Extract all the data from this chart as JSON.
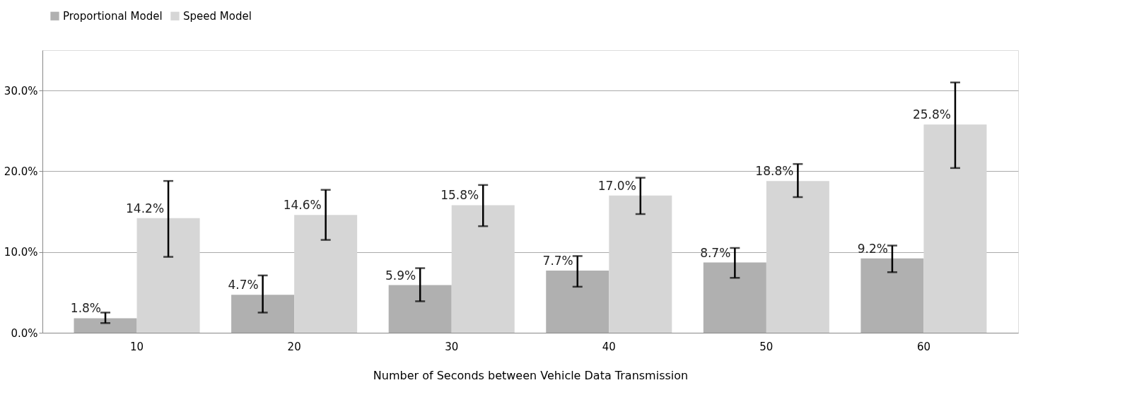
{
  "chart_data": {
    "type": "bar",
    "xlabel": "Number of Seconds between Vehicle Data Transmission",
    "categories": [
      "10",
      "20",
      "30",
      "40",
      "50",
      "60"
    ],
    "series": [
      {
        "name": "Proportional Model",
        "color": "#b0b0b0",
        "values": [
          1.8,
          4.7,
          5.9,
          7.7,
          8.7,
          9.2
        ],
        "value_labels": [
          "1.8%",
          "4.7%",
          "5.9%",
          "7.7%",
          "8.7%",
          "9.2%"
        ],
        "errors": [
          [
            1.2,
            2.5
          ],
          [
            2.5,
            7.1
          ],
          [
            3.9,
            8.0
          ],
          [
            5.7,
            9.5
          ],
          [
            6.8,
            10.5
          ],
          [
            7.5,
            10.8
          ]
        ]
      },
      {
        "name": "Speed Model",
        "color": "#d6d6d6",
        "values": [
          14.2,
          14.6,
          15.8,
          17.0,
          18.8,
          25.8
        ],
        "value_labels": [
          "14.2%",
          "14.6%",
          "15.8%",
          "17.0%",
          "18.8%",
          "25.8%"
        ],
        "errors": [
          [
            9.4,
            18.8
          ],
          [
            11.5,
            17.7
          ],
          [
            13.2,
            18.3
          ],
          [
            14.7,
            19.2
          ],
          [
            16.8,
            20.9
          ],
          [
            20.4,
            31.0
          ]
        ]
      }
    ],
    "ylim": [
      0,
      35
    ],
    "yticks": [
      {
        "value": 0,
        "label": "0.0%"
      },
      {
        "value": 10,
        "label": "10.0%"
      },
      {
        "value": 20,
        "label": "20.0%"
      },
      {
        "value": 30,
        "label": "30.0%"
      }
    ],
    "grid": "y",
    "legend": "top"
  }
}
